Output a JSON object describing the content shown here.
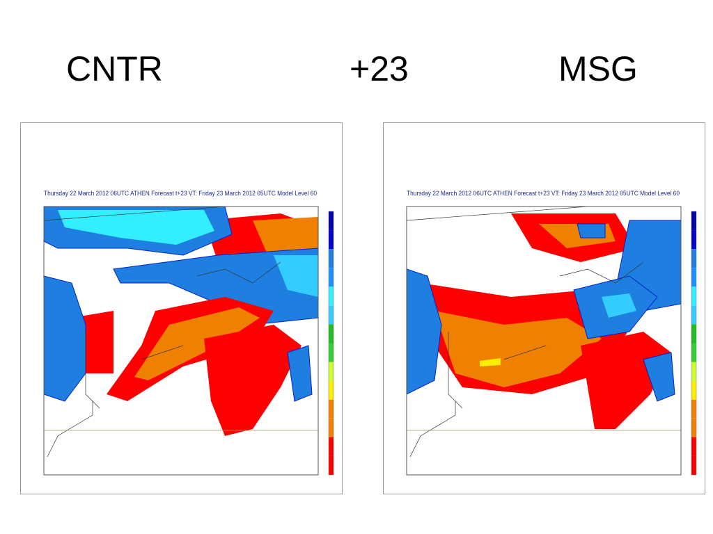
{
  "slide": {
    "title": {
      "left": "CNTR",
      "center": "+23",
      "right": "MSG"
    }
  },
  "panels": [
    {
      "caption": "Thursday 22 March 2012 06UTC ATHEN  Forecast t+23 VT: Friday 23 March 2012 05UTC Model Level 60"
    },
    {
      "caption": "Thursday 22 March 2012 06UTC ATHEN  Forecast t+23 VT: Friday 23 March 2012 05UTC Model Level 60"
    }
  ]
}
